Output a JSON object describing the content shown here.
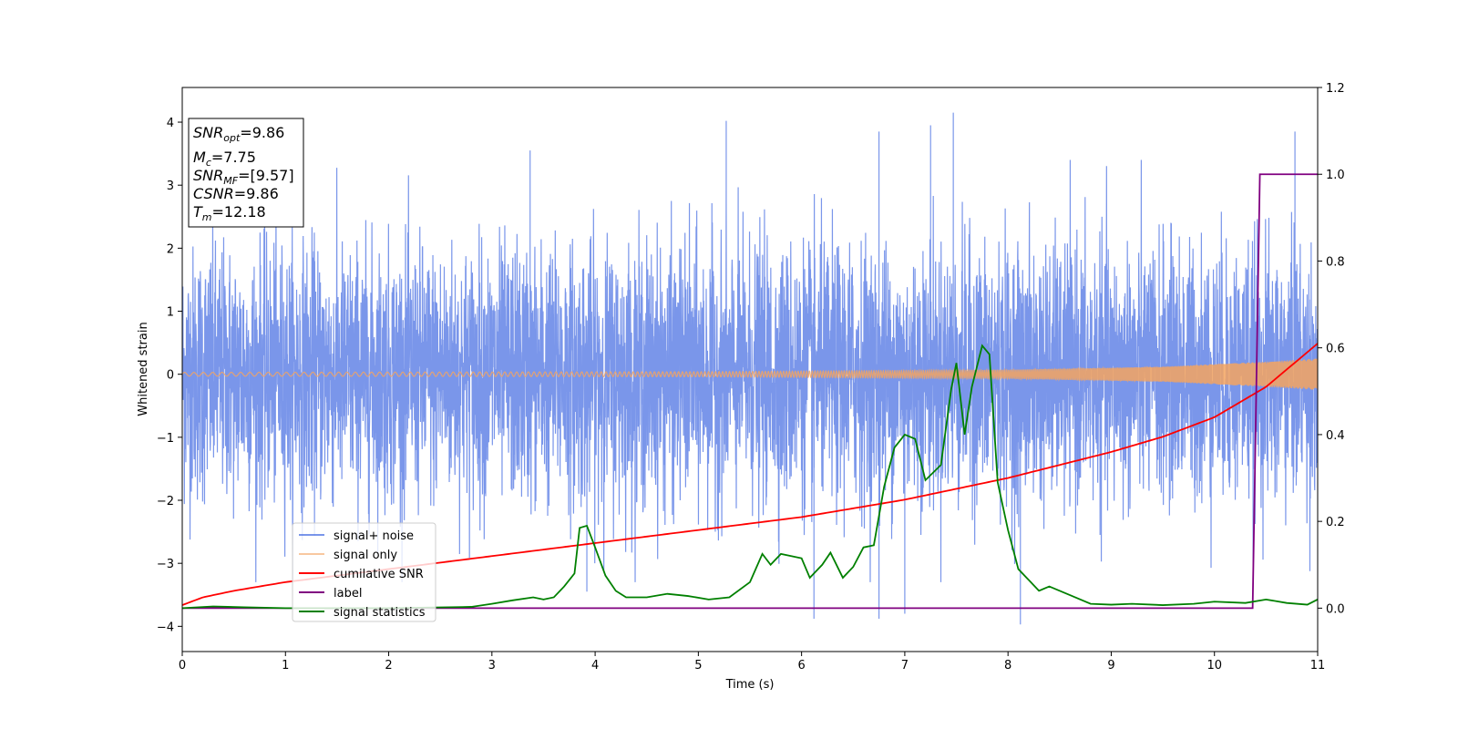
{
  "chart_data": {
    "type": "line",
    "xlabel": "Time (s)",
    "ylabel": "Whitened strain",
    "xlim": [
      0,
      11
    ],
    "ylim": [
      -4.4,
      4.55
    ],
    "y2lim": [
      -0.1,
      1.2
    ],
    "x_ticks": [
      0,
      1,
      2,
      3,
      4,
      5,
      6,
      7,
      8,
      9,
      10,
      11
    ],
    "y_ticks": [
      4,
      3,
      2,
      1,
      0,
      -1,
      -2,
      -3,
      -4
    ],
    "y2_ticks": [
      1.2,
      1.0,
      0.8,
      0.6,
      0.4,
      0.2,
      0.0
    ],
    "x_tick_labels": [
      "0",
      "1",
      "2",
      "3",
      "4",
      "5",
      "6",
      "7",
      "8",
      "9",
      "10",
      "11"
    ],
    "y_tick_labels": [
      "4",
      "3",
      "2",
      "1",
      "0",
      "−1",
      "−2",
      "−3",
      "−4"
    ],
    "y2_tick_labels": [
      "1.2",
      "1.0",
      "0.8",
      "0.6",
      "0.4",
      "0.2",
      "0.0"
    ],
    "annotation": {
      "snr_opt": {
        "base": "SNR",
        "sub": "opt",
        "value": "=9.86"
      },
      "mc": {
        "base": "M",
        "sub": "c",
        "value": "=7.75"
      },
      "snr_mf": {
        "base": "SNR",
        "sub": "MF",
        "value": "=[9.57]"
      },
      "csnr": {
        "base": "CSNR",
        "value": "=9.86"
      },
      "tm": {
        "base": "T",
        "sub": "m",
        "value": "=12.18"
      }
    },
    "legend_position": "lower-left",
    "series": [
      {
        "name": "signal+ noise",
        "color": "#4169e1",
        "axis": "left",
        "description_stats": {
          "noise_sigma": 1.0,
          "y_max": 4.15,
          "y_min": -3.97
        },
        "notable_peaks": [
          {
            "x": 7.47,
            "y": 4.15
          },
          {
            "x": 5.27,
            "y": 4.02
          },
          {
            "x": 7.25,
            "y": 3.95
          },
          {
            "x": 6.75,
            "y": 3.85
          },
          {
            "x": 10.78,
            "y": 3.85
          },
          {
            "x": 3.37,
            "y": 3.55
          },
          {
            "x": 8.12,
            "y": -3.97
          },
          {
            "x": 6.12,
            "y": -3.88
          },
          {
            "x": 6.75,
            "y": -3.88
          },
          {
            "x": 7.0,
            "y": -3.8
          },
          {
            "x": 3.92,
            "y": -3.45
          }
        ]
      },
      {
        "name": "signal only",
        "color": "#f4a460",
        "axis": "left",
        "amplitude": [
          {
            "x": 0,
            "y": 0.03
          },
          {
            "x": 5,
            "y": 0.04
          },
          {
            "x": 8,
            "y": 0.07
          },
          {
            "x": 9.5,
            "y": 0.12
          },
          {
            "x": 10.5,
            "y": 0.2
          },
          {
            "x": 11,
            "y": 0.25
          }
        ]
      },
      {
        "name": "cumilative SNR",
        "color": "#ff0000",
        "axis": "right",
        "points": [
          {
            "x": 0,
            "y": 0.007
          },
          {
            "x": 0.2,
            "y": 0.025
          },
          {
            "x": 0.5,
            "y": 0.04
          },
          {
            "x": 1,
            "y": 0.06
          },
          {
            "x": 2,
            "y": 0.09
          },
          {
            "x": 3,
            "y": 0.12
          },
          {
            "x": 4,
            "y": 0.15
          },
          {
            "x": 5,
            "y": 0.18
          },
          {
            "x": 6,
            "y": 0.21
          },
          {
            "x": 7,
            "y": 0.25
          },
          {
            "x": 8,
            "y": 0.3
          },
          {
            "x": 9,
            "y": 0.36
          },
          {
            "x": 9.5,
            "y": 0.395
          },
          {
            "x": 10,
            "y": 0.44
          },
          {
            "x": 10.5,
            "y": 0.51
          },
          {
            "x": 11,
            "y": 0.61
          }
        ]
      },
      {
        "name": "label",
        "color": "#800080",
        "axis": "right",
        "points": [
          {
            "x": 0,
            "y": 0.0
          },
          {
            "x": 10.37,
            "y": 0.0
          },
          {
            "x": 10.44,
            "y": 1.0
          },
          {
            "x": 11,
            "y": 1.0
          }
        ]
      },
      {
        "name": "signal statistics",
        "color": "#008000",
        "axis": "right",
        "points": [
          {
            "x": 0,
            "y": 0.0
          },
          {
            "x": 0.3,
            "y": 0.004
          },
          {
            "x": 0.6,
            "y": 0.002
          },
          {
            "x": 1.0,
            "y": 0.0
          },
          {
            "x": 2.0,
            "y": 0.0
          },
          {
            "x": 2.8,
            "y": 0.003
          },
          {
            "x": 3.0,
            "y": 0.01
          },
          {
            "x": 3.2,
            "y": 0.018
          },
          {
            "x": 3.4,
            "y": 0.025
          },
          {
            "x": 3.5,
            "y": 0.02
          },
          {
            "x": 3.6,
            "y": 0.025
          },
          {
            "x": 3.7,
            "y": 0.05
          },
          {
            "x": 3.8,
            "y": 0.08
          },
          {
            "x": 3.85,
            "y": 0.185
          },
          {
            "x": 3.92,
            "y": 0.19
          },
          {
            "x": 4.0,
            "y": 0.14
          },
          {
            "x": 4.1,
            "y": 0.075
          },
          {
            "x": 4.2,
            "y": 0.04
          },
          {
            "x": 4.3,
            "y": 0.025
          },
          {
            "x": 4.5,
            "y": 0.025
          },
          {
            "x": 4.7,
            "y": 0.033
          },
          {
            "x": 4.9,
            "y": 0.028
          },
          {
            "x": 5.1,
            "y": 0.02
          },
          {
            "x": 5.3,
            "y": 0.025
          },
          {
            "x": 5.5,
            "y": 0.06
          },
          {
            "x": 5.62,
            "y": 0.125
          },
          {
            "x": 5.7,
            "y": 0.1
          },
          {
            "x": 5.8,
            "y": 0.125
          },
          {
            "x": 5.9,
            "y": 0.12
          },
          {
            "x": 6.0,
            "y": 0.115
          },
          {
            "x": 6.08,
            "y": 0.07
          },
          {
            "x": 6.2,
            "y": 0.1
          },
          {
            "x": 6.28,
            "y": 0.128
          },
          {
            "x": 6.4,
            "y": 0.07
          },
          {
            "x": 6.5,
            "y": 0.095
          },
          {
            "x": 6.6,
            "y": 0.14
          },
          {
            "x": 6.7,
            "y": 0.145
          },
          {
            "x": 6.8,
            "y": 0.28
          },
          {
            "x": 6.9,
            "y": 0.37
          },
          {
            "x": 7.0,
            "y": 0.4
          },
          {
            "x": 7.1,
            "y": 0.39
          },
          {
            "x": 7.2,
            "y": 0.295
          },
          {
            "x": 7.35,
            "y": 0.33
          },
          {
            "x": 7.45,
            "y": 0.505
          },
          {
            "x": 7.5,
            "y": 0.565
          },
          {
            "x": 7.58,
            "y": 0.4
          },
          {
            "x": 7.65,
            "y": 0.51
          },
          {
            "x": 7.75,
            "y": 0.605
          },
          {
            "x": 7.82,
            "y": 0.585
          },
          {
            "x": 7.9,
            "y": 0.29
          },
          {
            "x": 8.0,
            "y": 0.18
          },
          {
            "x": 8.1,
            "y": 0.09
          },
          {
            "x": 8.2,
            "y": 0.065
          },
          {
            "x": 8.3,
            "y": 0.04
          },
          {
            "x": 8.4,
            "y": 0.05
          },
          {
            "x": 8.6,
            "y": 0.03
          },
          {
            "x": 8.8,
            "y": 0.01
          },
          {
            "x": 9.0,
            "y": 0.008
          },
          {
            "x": 9.2,
            "y": 0.01
          },
          {
            "x": 9.5,
            "y": 0.007
          },
          {
            "x": 9.8,
            "y": 0.01
          },
          {
            "x": 10.0,
            "y": 0.015
          },
          {
            "x": 10.3,
            "y": 0.012
          },
          {
            "x": 10.5,
            "y": 0.02
          },
          {
            "x": 10.7,
            "y": 0.012
          },
          {
            "x": 10.9,
            "y": 0.008
          },
          {
            "x": 11.0,
            "y": 0.02
          }
        ]
      }
    ]
  }
}
